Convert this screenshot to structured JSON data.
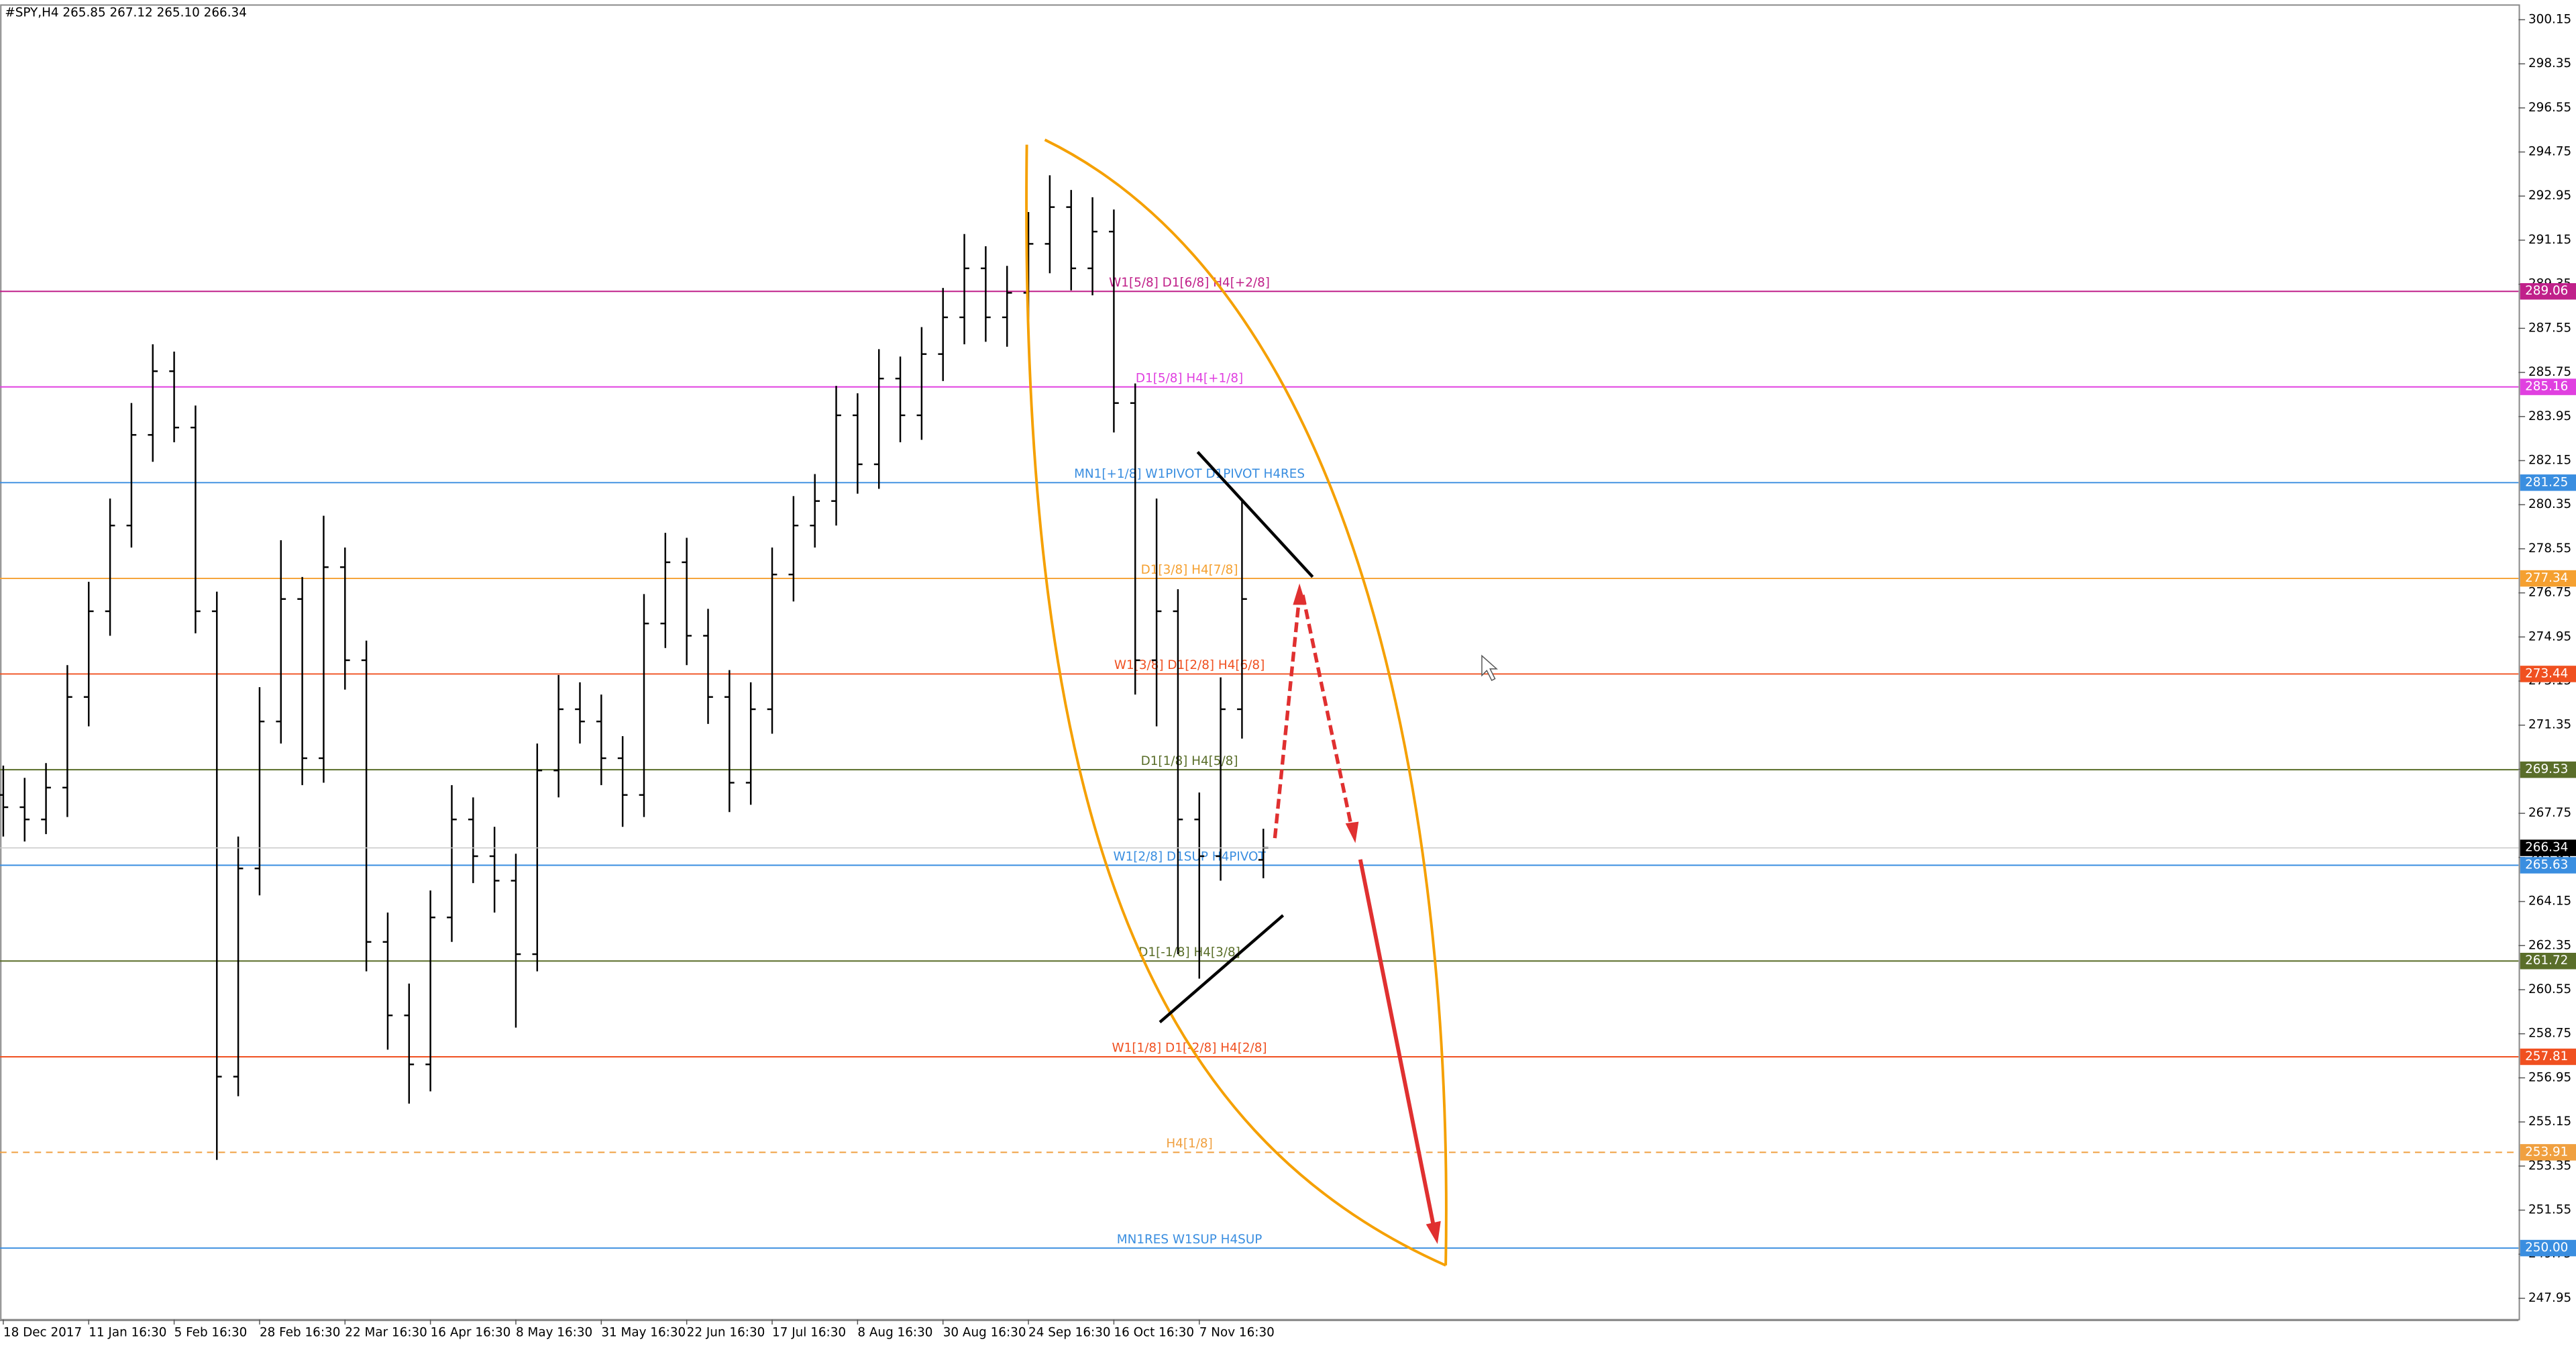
{
  "chart_data": {
    "type": "ohlc",
    "header": "#SPY,H4  265.85 267.12 265.10 266.34",
    "categories": [
      "18 Dec 2017",
      null,
      null,
      null,
      "11 Jan 16:30",
      null,
      null,
      null,
      "5 Feb 16:30",
      null,
      null,
      null,
      "28 Feb 16:30",
      null,
      null,
      null,
      "22 Mar 16:30",
      null,
      null,
      null,
      "16 Apr 16:30",
      null,
      null,
      null,
      "8 May 16:30",
      null,
      null,
      null,
      "31 May 16:30",
      null,
      null,
      null,
      "22 Jun 16:30",
      null,
      null,
      null,
      "17 Jul 16:30",
      null,
      null,
      null,
      "8 Aug 16:30",
      null,
      null,
      null,
      "30 Aug 16:30",
      null,
      null,
      null,
      "24 Sep 16:30",
      null,
      null,
      null,
      "16 Oct 16:30",
      null,
      null,
      null,
      "7 Nov 16:30",
      null,
      null,
      null
    ],
    "open": [
      268.5,
      268.0,
      267.5,
      268.8,
      272.5,
      276.0,
      279.5,
      283.2,
      285.8,
      283.5,
      276.0,
      257.0,
      265.5,
      271.5,
      276.5,
      270.0,
      277.8,
      274.0,
      262.5,
      259.5,
      257.5,
      263.5,
      267.5,
      266.0,
      265.0,
      262.0,
      269.5,
      272.0,
      271.5,
      270.0,
      268.5,
      275.5,
      278.0,
      275.0,
      272.5,
      269.0,
      272.0,
      277.5,
      279.5,
      280.5,
      284.0,
      282.0,
      285.5,
      284.0,
      286.5,
      288.0,
      290.0,
      288.0,
      289.0,
      291.0,
      292.5,
      290.0,
      291.5,
      284.5,
      274.0,
      276.0,
      267.5,
      266.0,
      272.0,
      265.85
    ],
    "high": [
      269.7,
      269.2,
      269.8,
      273.8,
      277.2,
      280.6,
      284.5,
      286.9,
      286.6,
      284.4,
      276.8,
      266.8,
      272.9,
      278.9,
      277.4,
      279.9,
      278.6,
      274.8,
      263.7,
      260.8,
      264.6,
      268.9,
      268.4,
      267.2,
      266.1,
      270.6,
      273.4,
      273.1,
      272.6,
      270.9,
      276.7,
      279.2,
      279.0,
      276.1,
      273.6,
      273.1,
      278.6,
      280.7,
      281.6,
      285.2,
      284.9,
      286.7,
      286.4,
      287.6,
      289.2,
      291.4,
      290.9,
      290.1,
      292.3,
      293.8,
      293.2,
      292.9,
      292.4,
      285.3,
      280.6,
      276.9,
      268.6,
      273.3,
      280.5,
      267.12
    ],
    "low": [
      266.8,
      266.6,
      266.9,
      267.6,
      271.3,
      275.0,
      278.6,
      282.1,
      282.9,
      275.1,
      253.6,
      256.2,
      264.4,
      270.6,
      268.9,
      269.0,
      272.8,
      261.3,
      258.1,
      255.9,
      256.4,
      262.5,
      264.9,
      263.7,
      259.0,
      261.3,
      268.4,
      270.6,
      268.9,
      267.2,
      267.6,
      274.5,
      273.8,
      271.4,
      267.8,
      268.1,
      271.0,
      276.4,
      278.6,
      279.5,
      280.8,
      281.0,
      282.9,
      283.0,
      285.4,
      286.9,
      287.0,
      286.8,
      287.9,
      289.8,
      289.1,
      288.9,
      283.3,
      272.6,
      271.3,
      262.0,
      261.0,
      265.0,
      270.8,
      265.1
    ],
    "close": [
      268.0,
      267.5,
      268.8,
      272.5,
      276.0,
      279.5,
      283.2,
      285.8,
      283.5,
      276.0,
      257.0,
      265.5,
      271.5,
      276.5,
      270.0,
      277.8,
      274.0,
      262.5,
      259.5,
      257.5,
      263.5,
      267.5,
      266.0,
      265.0,
      262.0,
      269.5,
      272.0,
      271.5,
      270.0,
      268.5,
      275.5,
      278.0,
      275.0,
      272.5,
      269.0,
      272.0,
      277.5,
      279.5,
      280.5,
      284.0,
      282.0,
      285.5,
      284.0,
      286.5,
      288.0,
      290.0,
      288.0,
      289.0,
      291.0,
      292.5,
      290.0,
      291.5,
      284.5,
      274.0,
      276.0,
      267.5,
      266.0,
      272.0,
      276.5,
      266.34
    ],
    "color": "#000000",
    "ylim": [
      247.08,
      300.75
    ],
    "yticks": [
      300.15,
      298.35,
      296.55,
      294.75,
      292.95,
      291.15,
      289.35,
      287.55,
      285.75,
      283.95,
      282.15,
      280.35,
      278.55,
      276.75,
      274.95,
      273.15,
      271.35,
      269.55,
      267.75,
      265.95,
      264.15,
      262.35,
      260.55,
      258.75,
      256.95,
      255.15,
      253.35,
      251.55,
      249.75,
      247.95
    ],
    "levels": {
      "names": [
        "W1[5/8] D1[6/8] H4[+2/8]",
        "D1[5/8] H4[+1/8]",
        "MN1[+1/8] W1PIVOT D1PIVOT H4RES",
        "D1[3/8] H4[7/8]",
        "W1[3/8] D1[2/8] H4[6/8]",
        "D1[1/8] H4[5/8]",
        "W1[2/8] D1SUP H4PIVOT",
        "D1[-1/8] H4[3/8]",
        "W1[1/8] D1[-2/8] H4[2/8]",
        "H4[1/8]",
        "MN1RES W1SUP H4SUP"
      ],
      "values": [
        289.06,
        285.16,
        281.25,
        277.34,
        273.44,
        269.53,
        265.63,
        261.72,
        257.81,
        253.91,
        250
      ],
      "value_labels": [
        "289.06",
        "285.16",
        "281.25",
        "277.34",
        "273.44",
        "269.53",
        "265.63",
        "261.72",
        "257.81",
        "253.91",
        "250.00"
      ],
      "colors": [
        "#c0208a",
        "#e040e0",
        "#3a8ee0",
        "#f5a030",
        "#f05020",
        "#5a6e2a",
        "#3a8ee0",
        "#5a6e2a",
        "#f05020",
        "#f0a040",
        "#3a8ee0"
      ],
      "dashed": [
        false,
        false,
        false,
        false,
        false,
        false,
        false,
        false,
        false,
        true,
        false
      ]
    }
  }
}
